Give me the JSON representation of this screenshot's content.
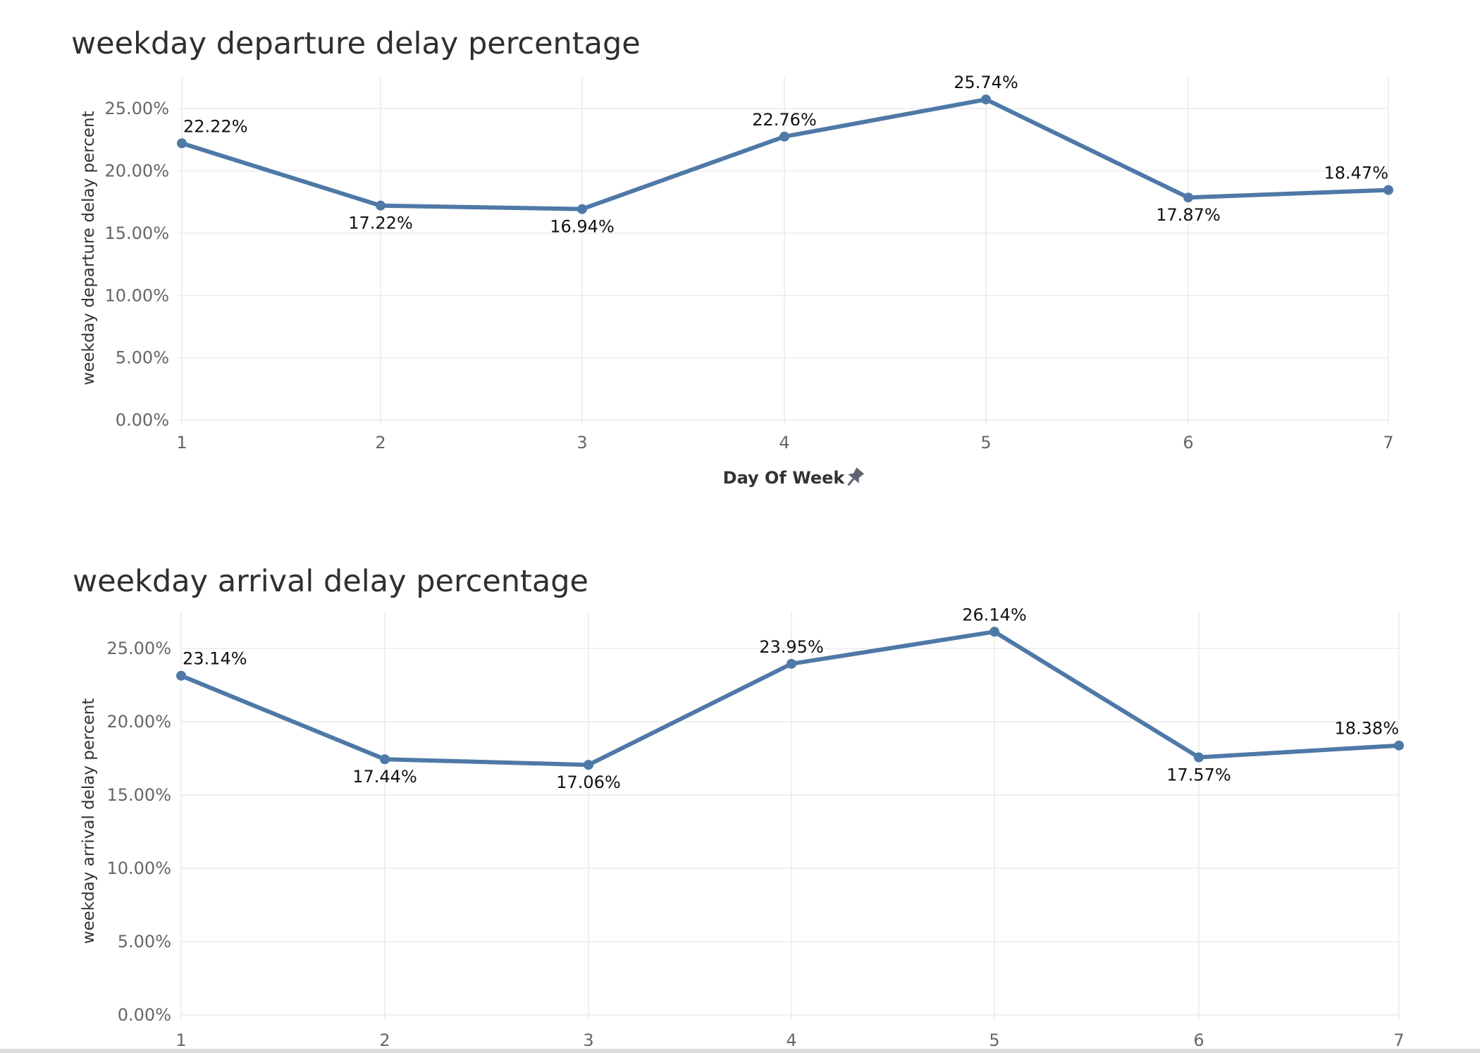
{
  "colors": {
    "series": "#4e79a7",
    "grid": "#ececec",
    "title": "#2f2f2f",
    "tick": "#666666"
  },
  "pin_icon": "pin-icon",
  "chart_data": [
    {
      "type": "line",
      "title": "weekday departure delay percentage",
      "xlabel": "Day Of Week",
      "ylabel": "weekday departure delay percent",
      "categories": [
        "1",
        "2",
        "3",
        "4",
        "5",
        "6",
        "7"
      ],
      "values": [
        22.22,
        17.22,
        16.94,
        22.76,
        25.74,
        17.87,
        18.47
      ],
      "data_labels": [
        "22.22%",
        "17.22%",
        "16.94%",
        "22.76%",
        "25.74%",
        "17.87%",
        "18.47%"
      ],
      "label_positions": [
        "above",
        "below",
        "below",
        "above",
        "above",
        "below",
        "above"
      ],
      "y_ticks": [
        "0.00%",
        "5.00%",
        "10.00%",
        "15.00%",
        "20.00%",
        "25.00%"
      ],
      "y_tick_values": [
        0,
        5,
        10,
        15,
        20,
        25
      ],
      "ylim": [
        0,
        27.5
      ],
      "grid": true,
      "legend": "none"
    },
    {
      "type": "line",
      "title": "weekday arrival delay percentage",
      "xlabel": "",
      "ylabel": "weekday arrival delay percent",
      "categories": [
        "1",
        "2",
        "3",
        "4",
        "5",
        "6",
        "7"
      ],
      "values": [
        23.14,
        17.44,
        17.06,
        23.95,
        26.14,
        17.57,
        18.38
      ],
      "data_labels": [
        "23.14%",
        "17.44%",
        "17.06%",
        "23.95%",
        "26.14%",
        "17.57%",
        "18.38%"
      ],
      "label_positions": [
        "above",
        "below",
        "below",
        "above",
        "above",
        "below",
        "above"
      ],
      "y_ticks": [
        "0.00%",
        "5.00%",
        "10.00%",
        "15.00%",
        "20.00%",
        "25.00%"
      ],
      "y_tick_values": [
        0,
        5,
        10,
        15,
        20,
        25
      ],
      "ylim": [
        0,
        27.5
      ],
      "grid": true,
      "legend": "none"
    }
  ]
}
